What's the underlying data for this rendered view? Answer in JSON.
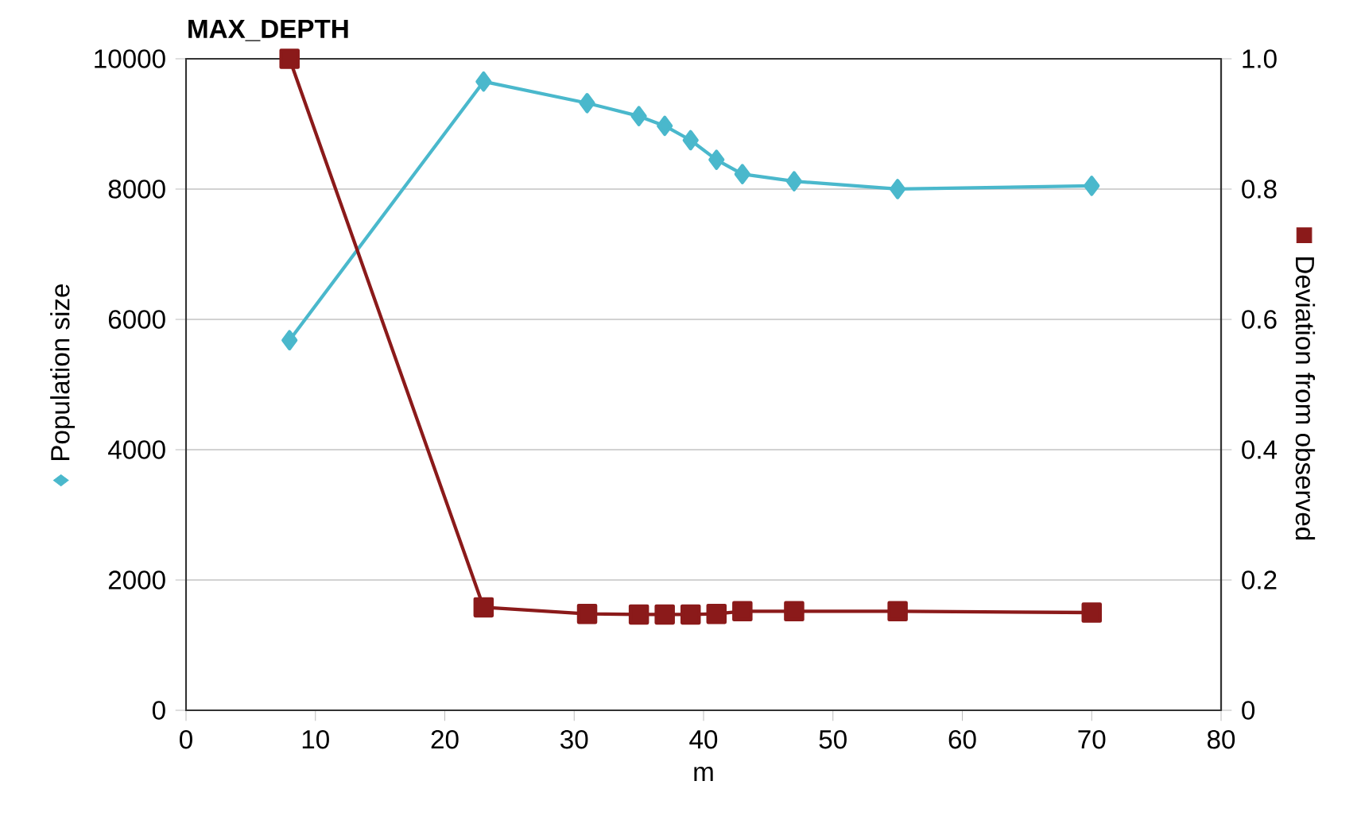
{
  "chart_data": {
    "type": "line",
    "title": "MAX_DEPTH",
    "xlabel": "m",
    "ylabel": "Population size",
    "y2label": "Deviation from observed",
    "x": [
      8,
      23,
      31,
      35,
      37,
      39,
      41,
      43,
      47,
      55,
      70
    ],
    "series": [
      {
        "color": "#4ab8cc",
        "marker": "diamond",
        "values": [
          5680,
          9650,
          9320,
          9120,
          8970,
          8750,
          8450,
          8230,
          8120,
          8000,
          8050
        ]
      },
      {
        "color": "#8b1a1a",
        "marker": "square",
        "axis": "y2",
        "values": [
          1.0,
          0.158,
          0.148,
          0.147,
          0.147,
          0.147,
          0.148,
          0.152,
          0.152,
          0.152,
          0.15
        ]
      }
    ],
    "xlim": [
      0,
      80
    ],
    "xticks": [
      0,
      10,
      20,
      30,
      40,
      50,
      60,
      70,
      80
    ],
    "ylim": [
      0,
      10000
    ],
    "yticks": [
      0,
      2000,
      4000,
      6000,
      8000,
      10000
    ],
    "y2lim": [
      0,
      1
    ],
    "y2ticks": [
      0,
      0.2,
      0.4,
      0.6,
      0.8,
      {
        "value": 1,
        "label": "1.0"
      }
    ],
    "grid": "y",
    "legend": false,
    "line_style": "solid"
  }
}
